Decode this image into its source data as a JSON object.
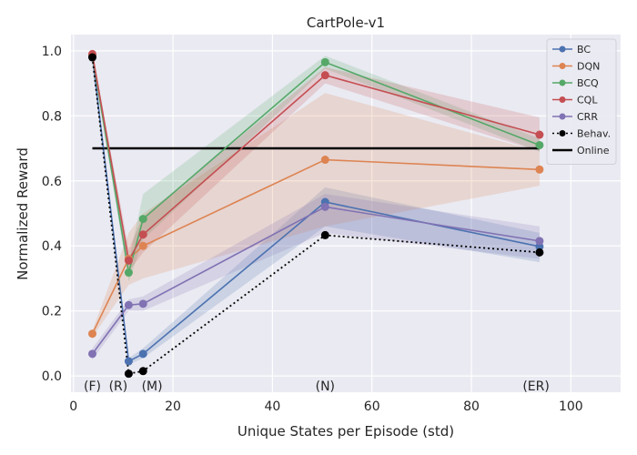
{
  "chart_data": {
    "type": "line",
    "title": "CartPole-v1",
    "xlabel": "Unique States per Episode (std)",
    "ylabel": "Normalized Reward",
    "xlim": [
      -0.5,
      110
    ],
    "ylim": [
      -0.05,
      1.05
    ],
    "xticks": [
      0,
      20,
      40,
      60,
      80,
      100
    ],
    "yticks": [
      0.0,
      0.2,
      0.4,
      0.6,
      0.8,
      1.0
    ],
    "xtick_labels": [
      "0",
      "20",
      "40",
      "60",
      "80",
      "100"
    ],
    "ytick_labels": [
      "0.0",
      "0.2",
      "0.4",
      "0.6",
      "0.8",
      "1.0"
    ],
    "grid": true,
    "legend_position": "top-right",
    "x": [
      3.8,
      11.1,
      14.0,
      50.6,
      93.7
    ],
    "series": [
      {
        "name": "BC",
        "color": "#4c72b0",
        "style": "solid",
        "marker": "circle",
        "values": [
          0.985,
          0.045,
          0.068,
          0.535,
          0.398
        ],
        "band_low": [
          0.975,
          0.035,
          0.055,
          0.46,
          0.35
        ],
        "band_high": [
          0.995,
          0.055,
          0.085,
          0.58,
          0.44
        ]
      },
      {
        "name": "DQN",
        "color": "#dd8452",
        "style": "solid",
        "marker": "circle",
        "values": [
          0.13,
          0.36,
          0.4,
          0.665,
          0.635
        ],
        "band_low": [
          0.12,
          0.28,
          0.3,
          0.46,
          0.585
        ],
        "band_high": [
          0.14,
          0.44,
          0.5,
          0.87,
          0.69
        ]
      },
      {
        "name": "BCQ",
        "color": "#55a868",
        "style": "solid",
        "marker": "circle",
        "values": [
          0.985,
          0.318,
          0.483,
          0.965,
          0.71
        ],
        "band_low": [
          0.975,
          0.29,
          0.42,
          0.945,
          0.69
        ],
        "band_high": [
          0.995,
          0.35,
          0.56,
          0.985,
          0.73
        ]
      },
      {
        "name": "CQL",
        "color": "#c44e52",
        "style": "solid",
        "marker": "circle",
        "values": [
          0.99,
          0.355,
          0.435,
          0.925,
          0.742
        ],
        "band_low": [
          0.98,
          0.32,
          0.38,
          0.9,
          0.69
        ],
        "band_high": [
          1.0,
          0.39,
          0.49,
          0.95,
          0.795
        ]
      },
      {
        "name": "CRR",
        "color": "#8172b3",
        "style": "solid",
        "marker": "circle",
        "values": [
          0.068,
          0.218,
          0.222,
          0.52,
          0.415
        ],
        "band_low": [
          0.05,
          0.2,
          0.2,
          0.44,
          0.36
        ],
        "band_high": [
          0.085,
          0.235,
          0.245,
          0.56,
          0.46
        ]
      },
      {
        "name": "Behav.",
        "color": "#000000",
        "style": "dotted",
        "marker": "circle",
        "values": [
          0.98,
          0.007,
          0.015,
          0.433,
          0.38
        ]
      }
    ],
    "reference_lines": [
      {
        "name": "Online",
        "color": "#000000",
        "y": 0.7,
        "x_range": [
          3.8,
          93.7
        ]
      }
    ],
    "annotations": [
      {
        "text": "(F)",
        "x": 3.8,
        "y": -0.03
      },
      {
        "text": "(R)",
        "x": 9.0,
        "y": -0.03
      },
      {
        "text": "(M)",
        "x": 15.8,
        "y": -0.03
      },
      {
        "text": "(N)",
        "x": 50.6,
        "y": -0.03
      },
      {
        "text": "(ER)",
        "x": 93.0,
        "y": -0.03
      }
    ]
  }
}
